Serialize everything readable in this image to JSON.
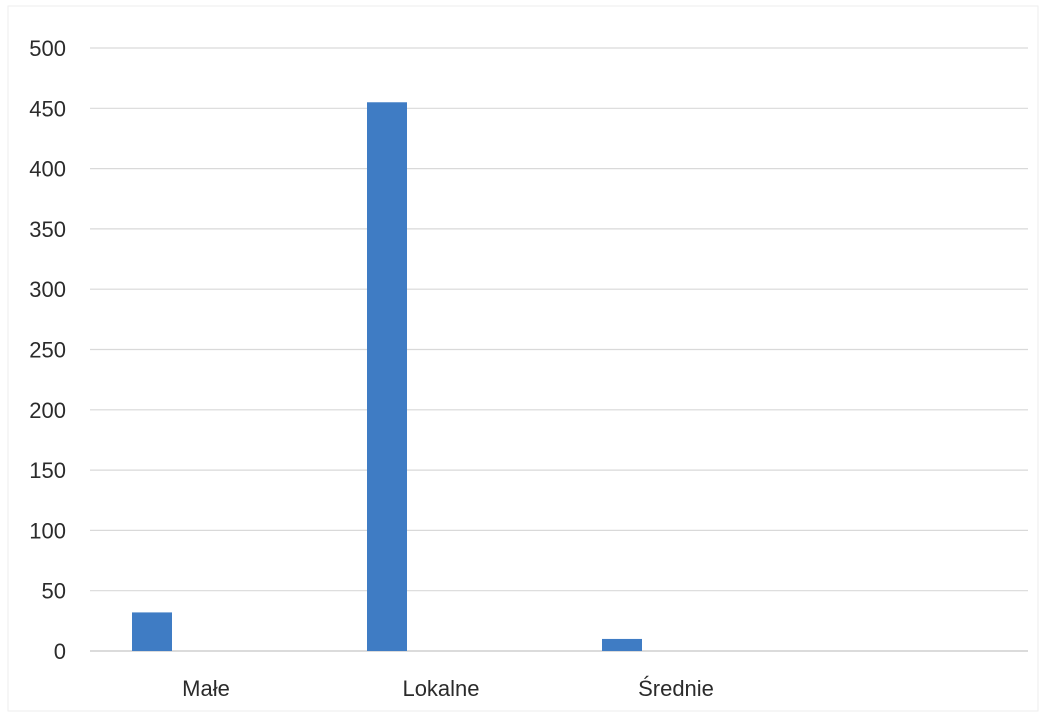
{
  "chart_data": {
    "type": "bar",
    "categories": [
      "Małe",
      "Lokalne",
      "Średnie"
    ],
    "values": [
      32,
      455,
      10
    ],
    "title": "",
    "xlabel": "",
    "ylabel": "",
    "ylim": [
      0,
      500
    ],
    "yticks": [
      "0",
      "50",
      "100",
      "150",
      "200",
      "250",
      "300",
      "350",
      "400",
      "450",
      "500"
    ],
    "grid": true,
    "legend": "none",
    "bar_color": "#3f7cc4",
    "grid_color": "#d9d9d9",
    "text_color": "#2b2b2b"
  }
}
